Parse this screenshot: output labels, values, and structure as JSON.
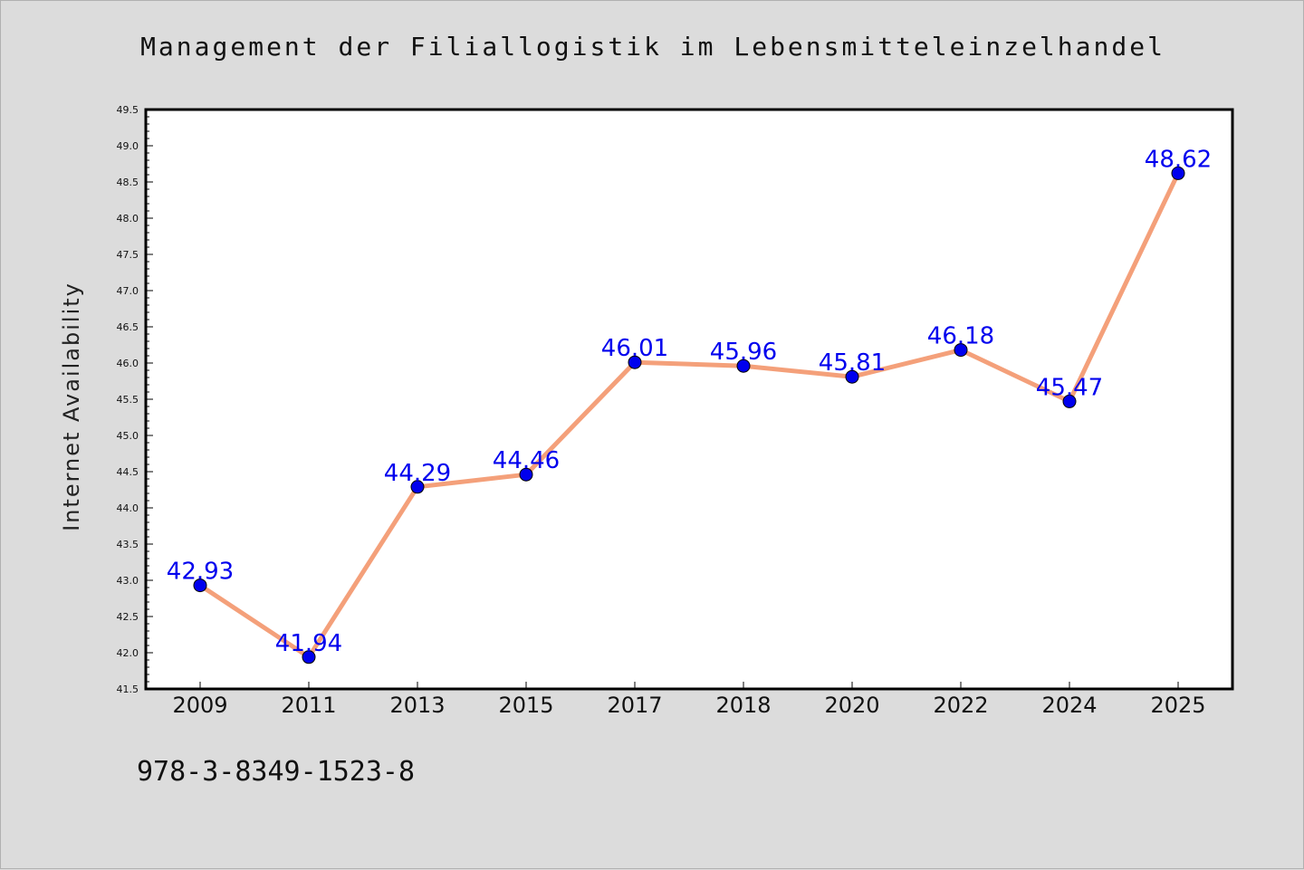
{
  "chart_data": {
    "type": "line",
    "title": "Management der Filiallogistik im Lebensmitteleinzelhandel",
    "xlabel": "",
    "ylabel": "Internet Availability",
    "categories": [
      "2009",
      "2011",
      "2013",
      "2015",
      "2017",
      "2018",
      "2020",
      "2022",
      "2024",
      "2025"
    ],
    "series": [
      {
        "values": [
          42.93,
          41.94,
          44.29,
          44.46,
          46.01,
          45.96,
          45.81,
          46.18,
          45.47,
          48.62
        ]
      }
    ],
    "ylim": [
      41.5,
      49.5
    ],
    "yticks": [
      "41.5",
      "42.0",
      "42.5",
      "43.0",
      "43.5",
      "44.0",
      "44.5",
      "45.0",
      "45.5",
      "46.0",
      "46.5",
      "47.0",
      "47.5",
      "48.0",
      "48.5",
      "49.0",
      "49.5"
    ],
    "data_labels": [
      "42.93",
      "41.94",
      "44.29",
      "44.46",
      "46.01",
      "45.96",
      "45.81",
      "46.18",
      "45.47",
      "48.62"
    ],
    "grid": false,
    "colors": {
      "line": "#f4a07a",
      "marker": "#0000ee",
      "label": "#0000ee",
      "frame": "#000000",
      "background": "#dcdcdc",
      "plot": "#ffffff"
    }
  },
  "footer": {
    "code": "978-3-8349-1523-8"
  }
}
